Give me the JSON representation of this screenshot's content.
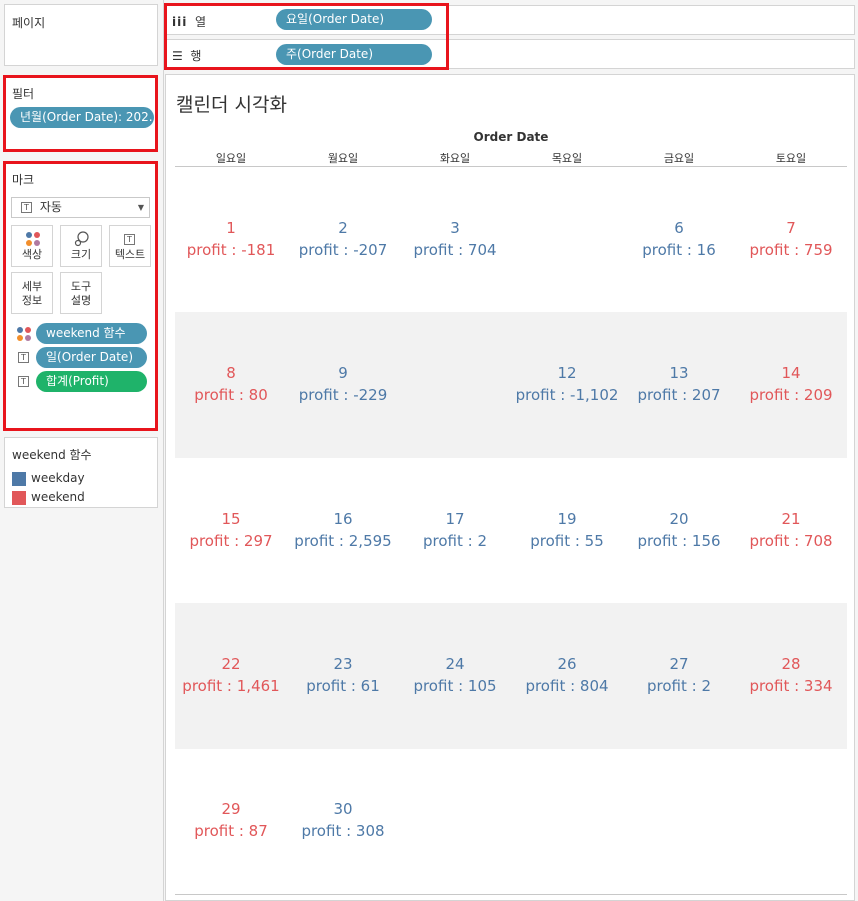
{
  "pages_label": "페이지",
  "columns_shelf": {
    "label": "열",
    "pill": "요일(Order Date)"
  },
  "rows_shelf": {
    "label": "행",
    "pill": "주(Order Date)"
  },
  "filters": {
    "title": "필터",
    "pill": "년월(Order Date): 202.."
  },
  "marks": {
    "title": "마크",
    "mark_type": "자동",
    "buttons": {
      "color": "색상",
      "size": "크기",
      "text": "텍스트",
      "detail": "세부\n정보",
      "tooltip": "도구\n설명"
    },
    "fields": [
      "weekend 함수",
      "일(Order Date)",
      "합계(Profit)"
    ]
  },
  "legend": {
    "title": "weekend 함수",
    "items": [
      {
        "label": "weekday",
        "color": "#4e79a7"
      },
      {
        "label": "weekend",
        "color": "#e15759"
      }
    ]
  },
  "view": {
    "title": "캘린더 시각화",
    "axis_title": "Order Date",
    "weekdays": [
      "일요일",
      "월요일",
      "화요일",
      "목요일",
      "금요일",
      "토요일"
    ]
  },
  "calendar": {
    "weeks": [
      [
        {
          "day": "1",
          "profit": "profit : -181",
          "type": "weekend"
        },
        {
          "day": "2",
          "profit": "profit : -207",
          "type": "weekday"
        },
        {
          "day": "3",
          "profit": "profit : 704",
          "type": "weekday"
        },
        null,
        {
          "day": "6",
          "profit": "profit : 16",
          "type": "weekday"
        },
        {
          "day": "7",
          "profit": "profit : 759",
          "type": "weekend"
        }
      ],
      [
        {
          "day": "8",
          "profit": "profit : 80",
          "type": "weekend"
        },
        {
          "day": "9",
          "profit": "profit : -229",
          "type": "weekday"
        },
        null,
        {
          "day": "12",
          "profit": "profit : -1,102",
          "type": "weekday"
        },
        {
          "day": "13",
          "profit": "profit : 207",
          "type": "weekday"
        },
        {
          "day": "14",
          "profit": "profit : 209",
          "type": "weekend"
        }
      ],
      [
        {
          "day": "15",
          "profit": "profit : 297",
          "type": "weekend"
        },
        {
          "day": "16",
          "profit": "profit : 2,595",
          "type": "weekday"
        },
        {
          "day": "17",
          "profit": "profit : 2",
          "type": "weekday"
        },
        {
          "day": "19",
          "profit": "profit : 55",
          "type": "weekday"
        },
        {
          "day": "20",
          "profit": "profit : 156",
          "type": "weekday"
        },
        {
          "day": "21",
          "profit": "profit : 708",
          "type": "weekend"
        }
      ],
      [
        {
          "day": "22",
          "profit": "profit : 1,461",
          "type": "weekend"
        },
        {
          "day": "23",
          "profit": "profit : 61",
          "type": "weekday"
        },
        {
          "day": "24",
          "profit": "profit : 105",
          "type": "weekday"
        },
        {
          "day": "26",
          "profit": "profit : 804",
          "type": "weekday"
        },
        {
          "day": "27",
          "profit": "profit : 2",
          "type": "weekday"
        },
        {
          "day": "28",
          "profit": "profit : 334",
          "type": "weekend"
        }
      ],
      [
        {
          "day": "29",
          "profit": "profit : 87",
          "type": "weekend"
        },
        {
          "day": "30",
          "profit": "profit : 308",
          "type": "weekday"
        },
        null,
        null,
        null,
        null
      ]
    ]
  }
}
